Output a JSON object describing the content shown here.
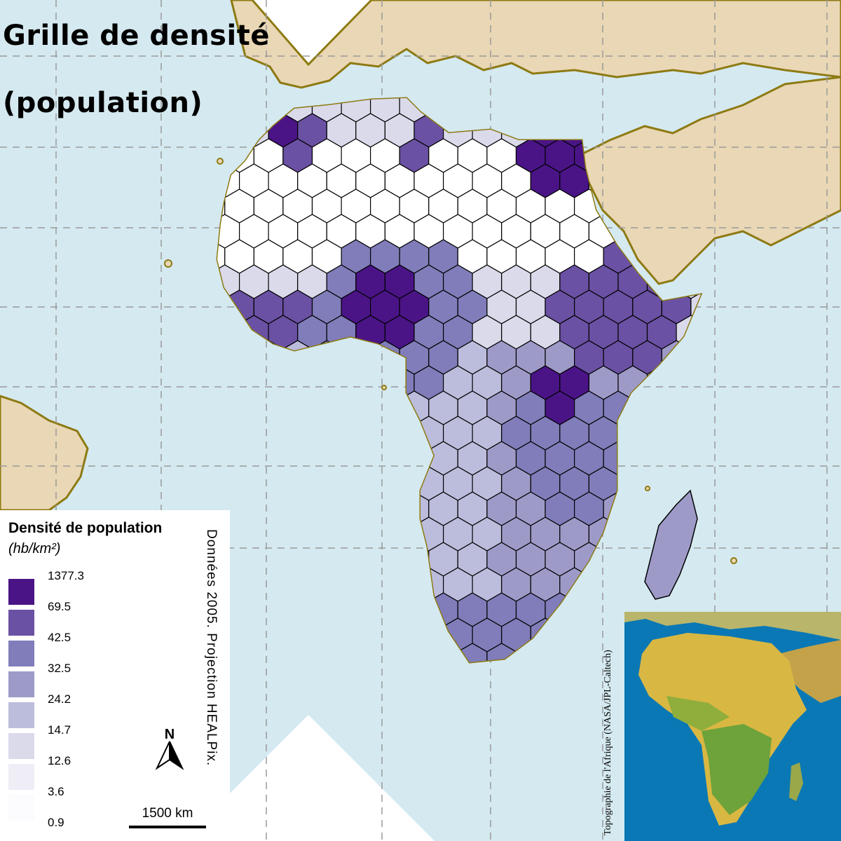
{
  "title": {
    "line1": "Grille de densité",
    "line2": "(population)"
  },
  "legend": {
    "title": "Densité de population",
    "unit": "(hb/km²)",
    "classes": [
      {
        "label": "1377.3",
        "color": "#4a1486"
      },
      {
        "label": "69.5",
        "color": "#6a51a3"
      },
      {
        "label": "42.5",
        "color": "#807dba"
      },
      {
        "label": "32.5",
        "color": "#9e9ac8"
      },
      {
        "label": "24.2",
        "color": "#bcbddc"
      },
      {
        "label": "14.7",
        "color": "#dadaeb"
      },
      {
        "label": "12.6",
        "color": "#efedf5"
      },
      {
        "label": "3.6",
        "color": "#fcfbfd"
      },
      {
        "label": "0.9",
        "color": "#ffffff"
      }
    ]
  },
  "credits": "Données 2005. Projection HEALPix.",
  "north_arrow": {
    "label": "N",
    "icon": "north-arrow-icon"
  },
  "scale_bar": {
    "label": "1500 km"
  },
  "inset": {
    "credit": "Topographie de l'Afrique (NASA/JPL-Caltech)"
  },
  "colors": {
    "ocean": "#d5e9f0",
    "land": "#e9d7b5",
    "coastline": "#8d7a12",
    "grid": "#9a9a9a"
  }
}
